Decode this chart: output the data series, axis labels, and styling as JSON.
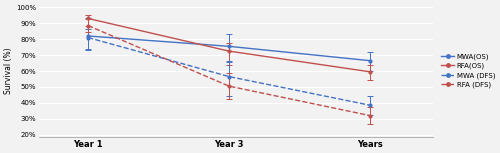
{
  "x_positions": [
    1,
    3,
    5
  ],
  "x_labels": [
    "Year 1",
    "Year 3",
    "Years"
  ],
  "series": {
    "MWA(OS)": {
      "values": [
        0.82,
        0.755,
        0.665
      ],
      "ci_lower": [
        0.74,
        0.655,
        0.6
      ],
      "ci_upper": [
        0.935,
        0.835,
        0.72
      ],
      "color": "#4472c4",
      "linestyle": "solid"
    },
    "RFA(OS)": {
      "values": [
        0.93,
        0.725,
        0.595
      ],
      "ci_lower": [
        0.885,
        0.64,
        0.545
      ],
      "ci_upper": [
        0.955,
        0.775,
        0.635
      ],
      "color": "#c0504d",
      "linestyle": "solid"
    },
    "MWA (DFS)": {
      "values": [
        0.81,
        0.565,
        0.385
      ],
      "ci_lower": [
        0.735,
        0.44,
        0.325
      ],
      "ci_upper": [
        0.865,
        0.665,
        0.445
      ],
      "color": "#4472c4",
      "linestyle": "dashed"
    },
    "RFA (DFS)": {
      "values": [
        0.885,
        0.505,
        0.32
      ],
      "ci_lower": [
        0.845,
        0.425,
        0.27
      ],
      "ci_upper": [
        0.925,
        0.585,
        0.375
      ],
      "color": "#c0504d",
      "linestyle": "dashed"
    }
  },
  "ylabel": "Survival (%)",
  "ylim": [
    0.185,
    1.02
  ],
  "yticks": [
    0.2,
    0.3,
    0.4,
    0.5,
    0.6,
    0.7,
    0.8,
    0.9,
    1.0
  ],
  "ytick_labels": [
    "20%",
    "30%",
    "40%",
    "50%",
    "60%",
    "70%",
    "80%",
    "90%",
    "100%"
  ],
  "background_color": "#f2f2f2",
  "grid_color": "#ffffff",
  "legend_order": [
    "MWA(OS)",
    "RFA(OS)",
    "MWA (DFS)",
    "RFA (DFS)"
  ],
  "figwidth": 5.0,
  "figheight": 1.53,
  "dpi": 100
}
